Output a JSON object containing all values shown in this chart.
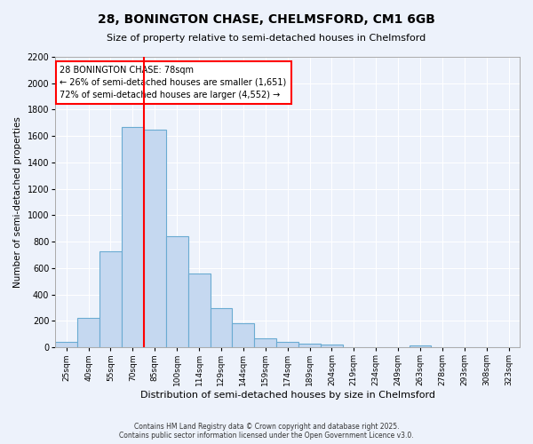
{
  "title": "28, BONINGTON CHASE, CHELMSFORD, CM1 6GB",
  "subtitle": "Size of property relative to semi-detached houses in Chelmsford",
  "xlabel": "Distribution of semi-detached houses by size in Chelmsford",
  "ylabel": "Number of semi-detached properties",
  "categories": [
    "25sqm",
    "40sqm",
    "55sqm",
    "70sqm",
    "85sqm",
    "100sqm",
    "114sqm",
    "129sqm",
    "144sqm",
    "159sqm",
    "174sqm",
    "189sqm",
    "204sqm",
    "219sqm",
    "234sqm",
    "249sqm",
    "263sqm",
    "278sqm",
    "293sqm",
    "308sqm",
    "323sqm"
  ],
  "values": [
    40,
    220,
    730,
    1670,
    1650,
    840,
    560,
    295,
    180,
    70,
    40,
    30,
    20,
    0,
    0,
    0,
    15,
    0,
    0,
    0,
    0
  ],
  "bar_color": "#c5d8f0",
  "bar_edge_color": "#6aabd2",
  "bar_edge_width": 0.8,
  "ylim": [
    0,
    2200
  ],
  "yticks": [
    0,
    200,
    400,
    600,
    800,
    1000,
    1200,
    1400,
    1600,
    1800,
    2000,
    2200
  ],
  "red_line_bin_index": 4,
  "property_label": "28 BONINGTON CHASE: 78sqm",
  "smaller_text": "← 26% of semi-detached houses are smaller (1,651)",
  "larger_text": "72% of semi-detached houses are larger (4,552) →",
  "bg_color": "#edf2fb",
  "grid_color": "#ffffff",
  "footer1": "Contains HM Land Registry data © Crown copyright and database right 2025.",
  "footer2": "Contains public sector information licensed under the Open Government Licence v3.0."
}
